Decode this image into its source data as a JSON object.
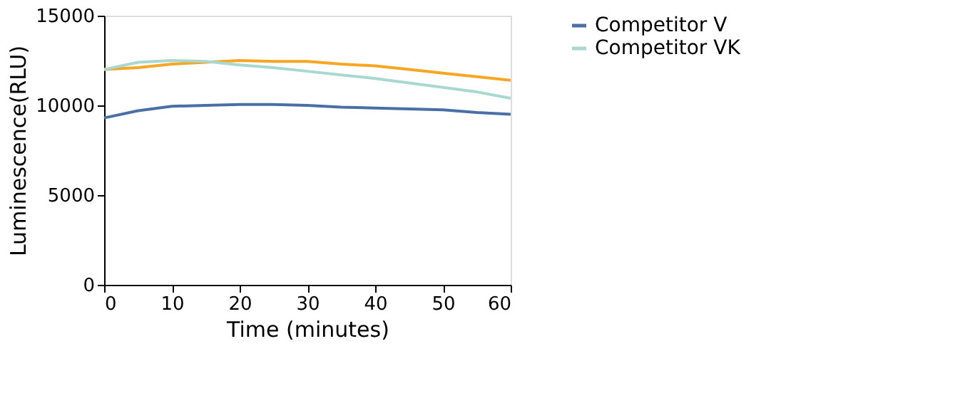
{
  "chart_data": {
    "type": "line",
    "xlabel": "Time (minutes)",
    "ylabel": "Luminescence(RLU)",
    "x": [
      0,
      5,
      10,
      15,
      20,
      25,
      30,
      35,
      40,
      45,
      50,
      55,
      60
    ],
    "xlim": [
      0,
      60
    ],
    "xticks": [
      0,
      10,
      20,
      30,
      40,
      50,
      60
    ],
    "ylim": [
      0,
      15000
    ],
    "yticks": [
      0,
      5000,
      10000,
      15000
    ],
    "grid": false,
    "legend": "right",
    "marker": "none",
    "line_style": "solid",
    "series": [
      {
        "color": "#f5a623",
        "values": [
          12000,
          12100,
          12300,
          12400,
          12500,
          12450,
          12450,
          12300,
          12200,
          12000,
          11800,
          11600,
          11400
        ]
      },
      {
        "name": "Competitor V",
        "color": "#4a6fa5",
        "values": [
          9300,
          9700,
          9950,
          10000,
          10050,
          10050,
          10000,
          9900,
          9850,
          9800,
          9750,
          9600,
          9500
        ]
      },
      {
        "name": "Competitor VK",
        "color": "#a8d8d0",
        "values": [
          12000,
          12400,
          12500,
          12450,
          12250,
          12100,
          11900,
          11700,
          11500,
          11250,
          11000,
          10750,
          10400
        ]
      }
    ]
  }
}
